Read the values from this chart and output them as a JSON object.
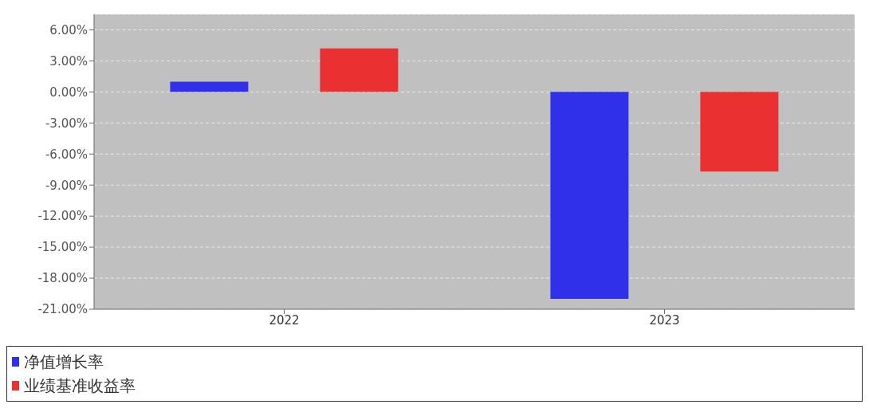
{
  "chart_data": {
    "type": "bar",
    "categories": [
      "2022",
      "2023"
    ],
    "series": [
      {
        "name": "净值增长率",
        "color": "#3030ea",
        "values": [
          1.0,
          -20.0
        ]
      },
      {
        "name": "业绩基准收益率",
        "color": "#ea3030",
        "values": [
          4.2,
          -7.7
        ]
      }
    ],
    "ylim": [
      -21,
      7.5
    ],
    "yticks": [
      {
        "value": -21,
        "label": "-21.00%"
      },
      {
        "value": -18,
        "label": "-18.00%"
      },
      {
        "value": -15,
        "label": "-15.00%"
      },
      {
        "value": -12,
        "label": "-12.00%"
      },
      {
        "value": -9,
        "label": "-9.00%"
      },
      {
        "value": -6,
        "label": "-6.00%"
      },
      {
        "value": -3,
        "label": "-3.00%"
      },
      {
        "value": 0,
        "label": "0.00%"
      },
      {
        "value": 3,
        "label": "3.00%"
      },
      {
        "value": 6,
        "label": "6.00%"
      }
    ],
    "grid": "y",
    "legend": "bottom"
  }
}
